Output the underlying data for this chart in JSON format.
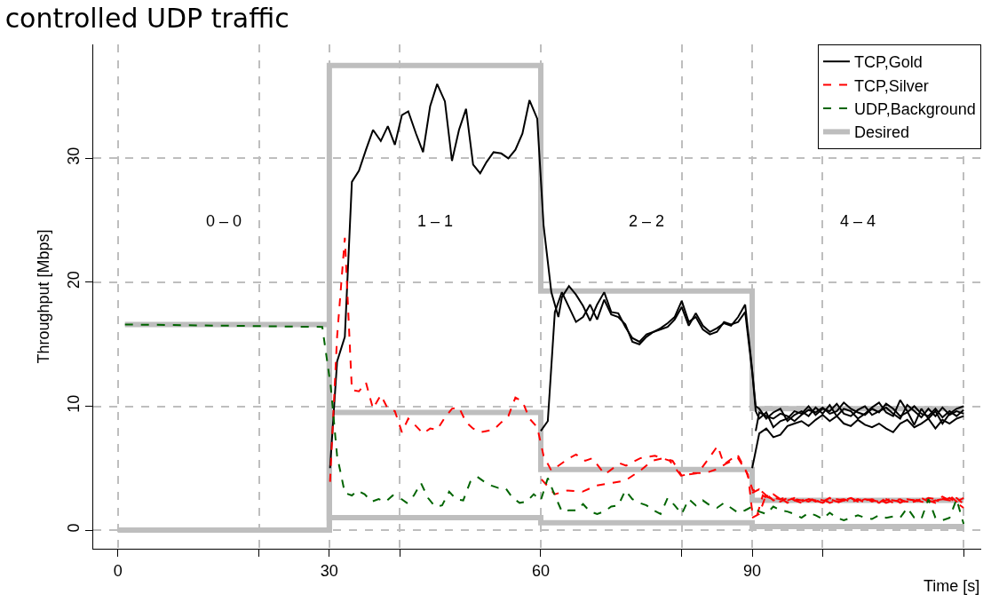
{
  "chart_data": {
    "type": "line",
    "title": "controlled UDP traffic",
    "xlabel": "Time [s]",
    "ylabel": "Throughput [Mbps]",
    "xlim": [
      -3.5,
      122.5
    ],
    "ylim": [
      -1.5,
      39.2
    ],
    "xticks": [
      0,
      {
        "value": 20,
        "label": null
      },
      30,
      {
        "value": 40,
        "label": null
      },
      60,
      {
        "value": 80,
        "label": null
      },
      90,
      {
        "value": 100,
        "label": null
      },
      {
        "value": 120,
        "label": null
      }
    ],
    "yticks": [
      0,
      10,
      20,
      30
    ],
    "grid": true,
    "legend": "top right",
    "annotations": [
      "0 – 0",
      "1 – 1",
      "2 – 2",
      "4 – 4"
    ],
    "series": [
      {
        "name": "Desired",
        "type": "step",
        "color": "#bebebe",
        "line_style": "solid",
        "x": [
          0,
          30,
          60,
          90,
          120
        ],
        "values": [
          0,
          37.5,
          19.3,
          9.8,
          9.8
        ]
      },
      {
        "type": "step",
        "color": "#bebebe",
        "line_style": "solid",
        "x": [
          0,
          30,
          60,
          90,
          120
        ],
        "values": [
          0,
          9.5,
          4.9,
          2.4,
          2.4
        ]
      },
      {
        "type": "step",
        "color": "#bebebe",
        "line_style": "solid",
        "x": [
          1,
          30,
          60,
          90,
          120
        ],
        "values": [
          16.6,
          1.0,
          0.6,
          0.3,
          0.3
        ]
      },
      {
        "name": "TCP,Gold",
        "color": "#000000",
        "line_style": "solid",
        "x": [
          30.1,
          31.1,
          32.2,
          33.2,
          34.2,
          35.2,
          36.2,
          37.3,
          38.3,
          39.3,
          40.3,
          41.2,
          42.3,
          43.3,
          44.3,
          45.3,
          46.4,
          47.4,
          48.4,
          49.4,
          50.4,
          51.4,
          52.3,
          53.3,
          54.4,
          55.4,
          56.4,
          57.4,
          58.4,
          59.5,
          60.4,
          61.5,
          62.5,
          63,
          64,
          65,
          66,
          67,
          68,
          69,
          70,
          71,
          72,
          73,
          74,
          75,
          76,
          77,
          78,
          79,
          80,
          81,
          82,
          83,
          84,
          85,
          86,
          87,
          88,
          89,
          89.8,
          90.5,
          91,
          92,
          93,
          94,
          95,
          96,
          97,
          98,
          99,
          100,
          101,
          102,
          103,
          104,
          105,
          106,
          107,
          108,
          109,
          110,
          111,
          112,
          113,
          114,
          115,
          116,
          117,
          118,
          119,
          120
        ],
        "values": [
          5.0,
          13.6,
          15.6,
          28.1,
          29.0,
          30.7,
          32.3,
          31.4,
          32.6,
          31.1,
          33.5,
          33.8,
          32.0,
          30.5,
          34.2,
          36.0,
          34.6,
          29.8,
          32.3,
          34.0,
          29.5,
          28.8,
          29.7,
          30.5,
          30.4,
          30.0,
          30.7,
          32.0,
          34.7,
          33.2,
          24.6,
          19.2,
          17.2,
          18.8,
          19.7,
          19.0,
          18.1,
          16.9,
          18.2,
          19.2,
          17.6,
          17.5,
          16.4,
          15.5,
          15.2,
          15.8,
          16.0,
          16.2,
          16.4,
          17.0,
          18.0,
          16.5,
          17.5,
          16.5,
          16.0,
          16.3,
          16.7,
          16.5,
          17.2,
          18.2,
          14.0,
          10.0,
          9.8,
          9.0,
          9.5,
          9.8,
          8.8,
          9.3,
          9.6,
          9.2,
          9.9,
          9.4,
          10.1,
          9.2,
          9.8,
          9.6,
          9.0,
          9.4,
          9.9,
          10.3,
          9.5,
          9.2,
          10.5,
          9.6,
          8.5,
          9.8,
          9.0,
          9.6,
          8.6,
          9.4,
          9.8,
          10.0
        ]
      },
      {
        "color": "#000000",
        "line_style": "solid",
        "x": [
          60,
          61,
          62,
          63,
          64,
          65,
          66,
          67,
          68,
          69,
          70,
          71,
          72,
          73,
          74,
          75,
          76,
          77,
          78,
          79,
          80,
          81,
          82,
          83,
          84,
          85,
          86,
          87,
          88,
          89,
          90,
          90.5,
          91,
          92,
          93,
          94,
          95,
          96,
          97,
          98,
          99,
          100,
          101,
          102,
          103,
          104,
          105,
          106,
          107,
          108,
          109,
          110,
          111,
          112,
          113,
          114,
          115,
          116,
          117,
          118,
          119,
          120
        ],
        "values": [
          8.0,
          8.8,
          17.6,
          19.2,
          18.0,
          16.8,
          17.2,
          18.2,
          17.0,
          18.6,
          17.4,
          17.2,
          16.6,
          15.2,
          15.0,
          15.6,
          16.0,
          16.3,
          16.7,
          17.2,
          18.5,
          16.8,
          17.2,
          16.2,
          15.8,
          16.0,
          16.8,
          16.6,
          16.8,
          17.6,
          12.8,
          9.6,
          9.0,
          9.5,
          8.3,
          8.8,
          9.0,
          9.6,
          9.4,
          10.0,
          9.3,
          9.8,
          9.6,
          10.2,
          9.4,
          9.2,
          9.7,
          10.0,
          9.3,
          9.6,
          9.9,
          9.4,
          9.0,
          10.1,
          9.6,
          9.1,
          9.8,
          9.2,
          9.9,
          9.3,
          9.6,
          9.4
        ]
      },
      {
        "color": "#000000",
        "line_style": "solid",
        "x": [
          90,
          91,
          92,
          93,
          94,
          95,
          96,
          97,
          98,
          99,
          100,
          101,
          102,
          103,
          104,
          105,
          106,
          107,
          108,
          109,
          110,
          111,
          112,
          113,
          114,
          115,
          116,
          117,
          118,
          119,
          120
        ],
        "values": [
          5.0,
          7.8,
          8.2,
          7.5,
          7.7,
          8.4,
          8.6,
          8.8,
          8.4,
          8.9,
          9.3,
          8.8,
          9.2,
          8.6,
          8.4,
          8.9,
          8.5,
          8.3,
          8.6,
          8.2,
          7.9,
          8.6,
          8.9,
          8.3,
          8.6,
          9.0,
          8.2,
          8.9,
          8.6,
          9.0,
          9.2
        ]
      },
      {
        "color": "#000000",
        "line_style": "solid",
        "x": [
          90.5,
          91,
          92,
          93,
          94,
          95,
          96,
          97,
          98,
          99,
          100,
          101,
          102,
          103,
          104,
          105,
          106,
          107,
          108,
          109,
          110,
          111,
          112,
          113,
          114,
          115,
          116,
          117,
          118,
          119,
          120
        ],
        "values": [
          8.0,
          9.5,
          9.2,
          9.0,
          9.4,
          9.2,
          8.8,
          9.3,
          9.7,
          9.5,
          9.9,
          9.4,
          9.6,
          10.3,
          9.8,
          9.5,
          9.3,
          9.8,
          9.5,
          10.2,
          9.8,
          9.2,
          9.5,
          10.0,
          9.4,
          9.2,
          9.8,
          9.1,
          9.6,
          9.2,
          9.7
        ]
      },
      {
        "name": "TCP,Silver",
        "color": "#ff0000",
        "line_style": "dashed",
        "x": [
          30.1,
          31.1,
          32.2,
          33.2,
          34.2,
          35.2,
          36.2,
          37.3,
          38.3,
          39.3,
          40.3,
          41.2,
          42.3,
          43.3,
          44.3,
          45.3,
          46.4,
          47.4,
          48.4,
          49.4,
          50.4,
          51.4,
          52.3,
          53.3,
          54.4,
          55.4,
          56.4,
          57.4,
          58.4,
          59.5,
          60.4,
          61.5,
          63,
          64,
          65,
          66.3,
          67.3,
          69.1,
          71.2,
          72.1,
          74.1,
          76.2,
          78.3,
          79.9,
          82.3,
          83.6,
          85.1,
          86,
          87.9,
          89.1,
          90.1,
          91,
          92,
          93,
          94,
          95,
          96,
          97,
          98,
          99,
          100,
          101,
          102,
          103,
          104,
          105,
          106,
          107,
          108,
          109,
          110,
          111,
          112,
          113,
          114,
          115,
          116,
          117,
          118,
          119,
          120
        ],
        "values": [
          3.9,
          15.6,
          23.6,
          11.3,
          11.2,
          11.9,
          9.8,
          10.9,
          9.8,
          9.6,
          7.9,
          9.0,
          8.4,
          7.8,
          8.2,
          8.1,
          9.1,
          9.8,
          9.9,
          8.7,
          8.2,
          7.9,
          8.0,
          8.1,
          8.7,
          9.2,
          10.7,
          10.4,
          9.0,
          8.3,
          6.0,
          4.8,
          5.4,
          5.8,
          6.1,
          5.6,
          5.8,
          4.5,
          5.4,
          5.2,
          5.8,
          6.0,
          5.6,
          4.4,
          4.6,
          5.6,
          6.8,
          5.3,
          6.1,
          4.8,
          3.2,
          3.3,
          2.8,
          2.6,
          2.5,
          2.7,
          2.4,
          2.5,
          2.3,
          2.6,
          2.4,
          2.3,
          2.5,
          2.4,
          2.6,
          2.3,
          2.4,
          2.5,
          2.3,
          2.4,
          2.6,
          2.2,
          2.5,
          2.4,
          2.3,
          2.6,
          2.5,
          2.7,
          2.4,
          2.6,
          2.1
        ]
      },
      {
        "color": "#ff0000",
        "line_style": "dashed",
        "x": [
          60.1,
          62,
          63.8,
          65.9,
          67.9,
          70,
          72,
          74.1,
          75.8,
          77.4,
          78.7,
          80,
          81.6,
          83.3,
          84.9,
          86.4,
          88,
          89.4,
          90,
          90.7,
          91.5,
          92,
          93,
          94,
          95,
          96,
          97,
          98,
          99,
          100,
          101,
          102,
          103,
          104,
          105,
          106,
          107,
          108,
          109,
          110,
          111,
          112,
          113,
          114,
          115,
          116,
          117,
          118,
          119,
          120
        ],
        "values": [
          4.1,
          2.9,
          3.2,
          3.1,
          3.6,
          3.8,
          4.0,
          4.8,
          5.6,
          5.8,
          5.6,
          4.4,
          4.6,
          4.6,
          4.9,
          5.4,
          5.8,
          4.5,
          1.5,
          1.2,
          2.8,
          2.6,
          2.9,
          2.5,
          2.4,
          2.6,
          2.3,
          2.5,
          2.4,
          2.2,
          2.5,
          2.3,
          2.4,
          2.6,
          2.3,
          2.5,
          2.4,
          2.2,
          2.6,
          2.4,
          2.3,
          2.5,
          2.4,
          2.6,
          2.3,
          2.4,
          2.5,
          2.8,
          2.3,
          2.5
        ]
      },
      {
        "color": "#ff0000",
        "line_style": "dashed",
        "x": [
          90,
          91,
          92,
          93,
          94,
          95,
          96,
          97,
          98,
          99,
          100,
          101,
          102,
          103,
          104,
          105,
          106,
          107,
          108,
          109,
          110,
          111,
          112,
          113,
          114,
          115,
          116,
          117,
          118,
          119,
          120
        ],
        "values": [
          1.0,
          1.3,
          2.9,
          2.4,
          2.6,
          2.2,
          2.5,
          2.4,
          2.6,
          2.3,
          2.5,
          2.2,
          2.4,
          2.5,
          2.3,
          2.5,
          2.2,
          2.4,
          2.3,
          2.5,
          2.2,
          2.4,
          2.3,
          2.5,
          2.3,
          2.2,
          2.4,
          2.3,
          2.6,
          2.2,
          1.8
        ]
      },
      {
        "color": "#ff0000",
        "line_style": "dashed",
        "x": [
          90,
          91,
          92,
          93,
          94,
          95,
          96,
          97,
          98,
          99,
          100,
          101,
          102,
          103,
          104,
          105,
          106,
          107,
          108,
          109,
          110,
          111,
          112,
          113,
          114,
          115,
          116,
          117,
          118,
          119,
          120
        ],
        "values": [
          3.0,
          3.3,
          2.7,
          2.5,
          2.3,
          2.6,
          2.4,
          2.2,
          2.5,
          2.4,
          2.3,
          2.6,
          2.2,
          2.4,
          2.3,
          2.4,
          2.6,
          2.3,
          2.5,
          2.2,
          2.4,
          2.5,
          2.2,
          2.3,
          2.5,
          2.4,
          2.2,
          2.5,
          2.4,
          2.3,
          2.6
        ]
      },
      {
        "name": "UDP,Background",
        "color": "#006400",
        "line_style": "dashed",
        "x": [
          1,
          29,
          30.2,
          31.1,
          32.2,
          33.2,
          34,
          35,
          36,
          37,
          38,
          39,
          40,
          41,
          42,
          43,
          44,
          45,
          46,
          47,
          48,
          49,
          50,
          51,
          52,
          53,
          54,
          55,
          56,
          57,
          58,
          59,
          60,
          61,
          62,
          63,
          64,
          65,
          66,
          67,
          68,
          69,
          70,
          71,
          72,
          73,
          74,
          75,
          76,
          77,
          78,
          79,
          80,
          81,
          82,
          83,
          84,
          85,
          86,
          87,
          88,
          89,
          90,
          91,
          92,
          93,
          94,
          95,
          96,
          97,
          98,
          99,
          100,
          101,
          102,
          103,
          104,
          105,
          106,
          107,
          108,
          109,
          110,
          111,
          112,
          113,
          114,
          115,
          116,
          117,
          118,
          119,
          120
        ],
        "values": [
          16.6,
          16.4,
          11.6,
          6.0,
          3.0,
          2.8,
          3.2,
          2.9,
          2.3,
          2.5,
          2.3,
          2.8,
          2.6,
          2.2,
          2.8,
          3.8,
          2.6,
          1.9,
          2.0,
          3.1,
          2.5,
          2.4,
          3.9,
          4.3,
          3.9,
          3.6,
          3.4,
          3.4,
          2.6,
          2.2,
          2.3,
          2.9,
          2.4,
          4.2,
          2.8,
          1.5,
          1.6,
          1.6,
          2.1,
          1.5,
          1.3,
          1.5,
          1.9,
          2.0,
          3.2,
          2.5,
          2.2,
          2.0,
          1.6,
          1.3,
          2.6,
          2.0,
          1.3,
          2.5,
          2.0,
          2.4,
          2.0,
          1.8,
          2.2,
          1.8,
          1.4,
          1.6,
          1.9,
          1.5,
          1.3,
          1.9,
          1.6,
          1.5,
          1.3,
          1.0,
          1.4,
          1.2,
          0.9,
          1.4,
          1.0,
          0.8,
          1.0,
          1.2,
          1.0,
          0.9,
          1.2,
          1.0,
          1.1,
          1.0,
          1.8,
          1.0,
          0.9,
          2.5,
          1.0,
          0.8,
          1.0,
          2.5,
          0.5
        ]
      }
    ]
  }
}
